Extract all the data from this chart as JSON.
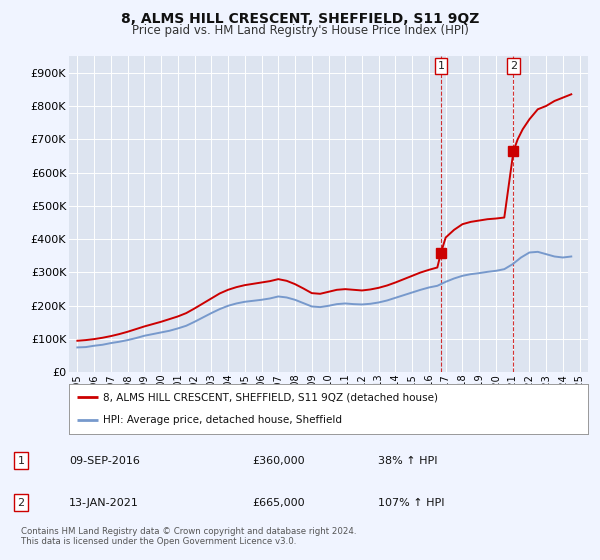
{
  "title": "8, ALMS HILL CRESCENT, SHEFFIELD, S11 9QZ",
  "subtitle": "Price paid vs. HM Land Registry's House Price Index (HPI)",
  "background_color": "#f0f4ff",
  "plot_background": "#dde4f0",
  "red_color": "#cc0000",
  "blue_color": "#7799cc",
  "sale1_date": "09-SEP-2016",
  "sale1_price": 360000,
  "sale1_label": "38% ↑ HPI",
  "sale2_date": "13-JAN-2021",
  "sale2_price": 665000,
  "sale2_label": "107% ↑ HPI",
  "footer": "Contains HM Land Registry data © Crown copyright and database right 2024.\nThis data is licensed under the Open Government Licence v3.0.",
  "ylim": [
    0,
    950000
  ],
  "yticks": [
    0,
    100000,
    200000,
    300000,
    400000,
    500000,
    600000,
    700000,
    800000,
    900000
  ],
  "hpi_years": [
    1995.0,
    1995.5,
    1996.0,
    1996.5,
    1997.0,
    1997.5,
    1998.0,
    1998.5,
    1999.0,
    1999.5,
    2000.0,
    2000.5,
    2001.0,
    2001.5,
    2002.0,
    2002.5,
    2003.0,
    2003.5,
    2004.0,
    2004.5,
    2005.0,
    2005.5,
    2006.0,
    2006.5,
    2007.0,
    2007.5,
    2008.0,
    2008.5,
    2009.0,
    2009.5,
    2010.0,
    2010.5,
    2011.0,
    2011.5,
    2012.0,
    2012.5,
    2013.0,
    2013.5,
    2014.0,
    2014.5,
    2015.0,
    2015.5,
    2016.0,
    2016.5,
    2017.0,
    2017.5,
    2018.0,
    2018.5,
    2019.0,
    2019.5,
    2020.0,
    2020.5,
    2021.0,
    2021.5,
    2022.0,
    2022.5,
    2023.0,
    2023.5,
    2024.0,
    2024.5
  ],
  "hpi_values": [
    75000,
    76000,
    80000,
    83000,
    88000,
    92000,
    97000,
    103000,
    110000,
    115000,
    120000,
    125000,
    132000,
    140000,
    152000,
    165000,
    178000,
    190000,
    200000,
    207000,
    212000,
    215000,
    218000,
    222000,
    228000,
    225000,
    218000,
    208000,
    198000,
    196000,
    200000,
    205000,
    207000,
    205000,
    204000,
    206000,
    210000,
    216000,
    224000,
    232000,
    240000,
    248000,
    255000,
    260000,
    272000,
    282000,
    290000,
    295000,
    298000,
    302000,
    305000,
    310000,
    325000,
    345000,
    360000,
    362000,
    355000,
    348000,
    345000,
    348000
  ],
  "prop_years": [
    1995.0,
    1995.5,
    1996.0,
    1996.5,
    1997.0,
    1997.5,
    1998.0,
    1998.5,
    1999.0,
    1999.5,
    2000.0,
    2000.5,
    2001.0,
    2001.5,
    2002.0,
    2002.5,
    2003.0,
    2003.5,
    2004.0,
    2004.5,
    2005.0,
    2005.5,
    2006.0,
    2006.5,
    2007.0,
    2007.5,
    2008.0,
    2008.5,
    2009.0,
    2009.5,
    2010.0,
    2010.5,
    2011.0,
    2011.5,
    2012.0,
    2012.5,
    2013.0,
    2013.5,
    2014.0,
    2014.5,
    2015.0,
    2015.5,
    2016.0,
    2016.5,
    2016.72,
    2017.0,
    2017.5,
    2018.0,
    2018.5,
    2019.0,
    2019.5,
    2020.0,
    2020.5,
    2021.05,
    2021.3,
    2021.6,
    2022.0,
    2022.5,
    2023.0,
    2023.5,
    2024.0,
    2024.5
  ],
  "prop_values": [
    95000,
    97000,
    100000,
    104000,
    109000,
    115000,
    122000,
    130000,
    138000,
    145000,
    152000,
    160000,
    168000,
    178000,
    192000,
    207000,
    222000,
    237000,
    248000,
    256000,
    262000,
    266000,
    270000,
    274000,
    280000,
    275000,
    265000,
    252000,
    238000,
    236000,
    242000,
    248000,
    250000,
    248000,
    246000,
    249000,
    254000,
    261000,
    270000,
    280000,
    290000,
    300000,
    308000,
    315000,
    360000,
    405000,
    428000,
    445000,
    452000,
    456000,
    460000,
    462000,
    465000,
    665000,
    700000,
    730000,
    760000,
    790000,
    800000,
    815000,
    825000,
    835000
  ],
  "sale1_x": 2016.72,
  "sale2_x": 2021.05,
  "legend_label_red": "8, ALMS HILL CRESCENT, SHEFFIELD, S11 9QZ (detached house)",
  "legend_label_blue": "HPI: Average price, detached house, Sheffield"
}
